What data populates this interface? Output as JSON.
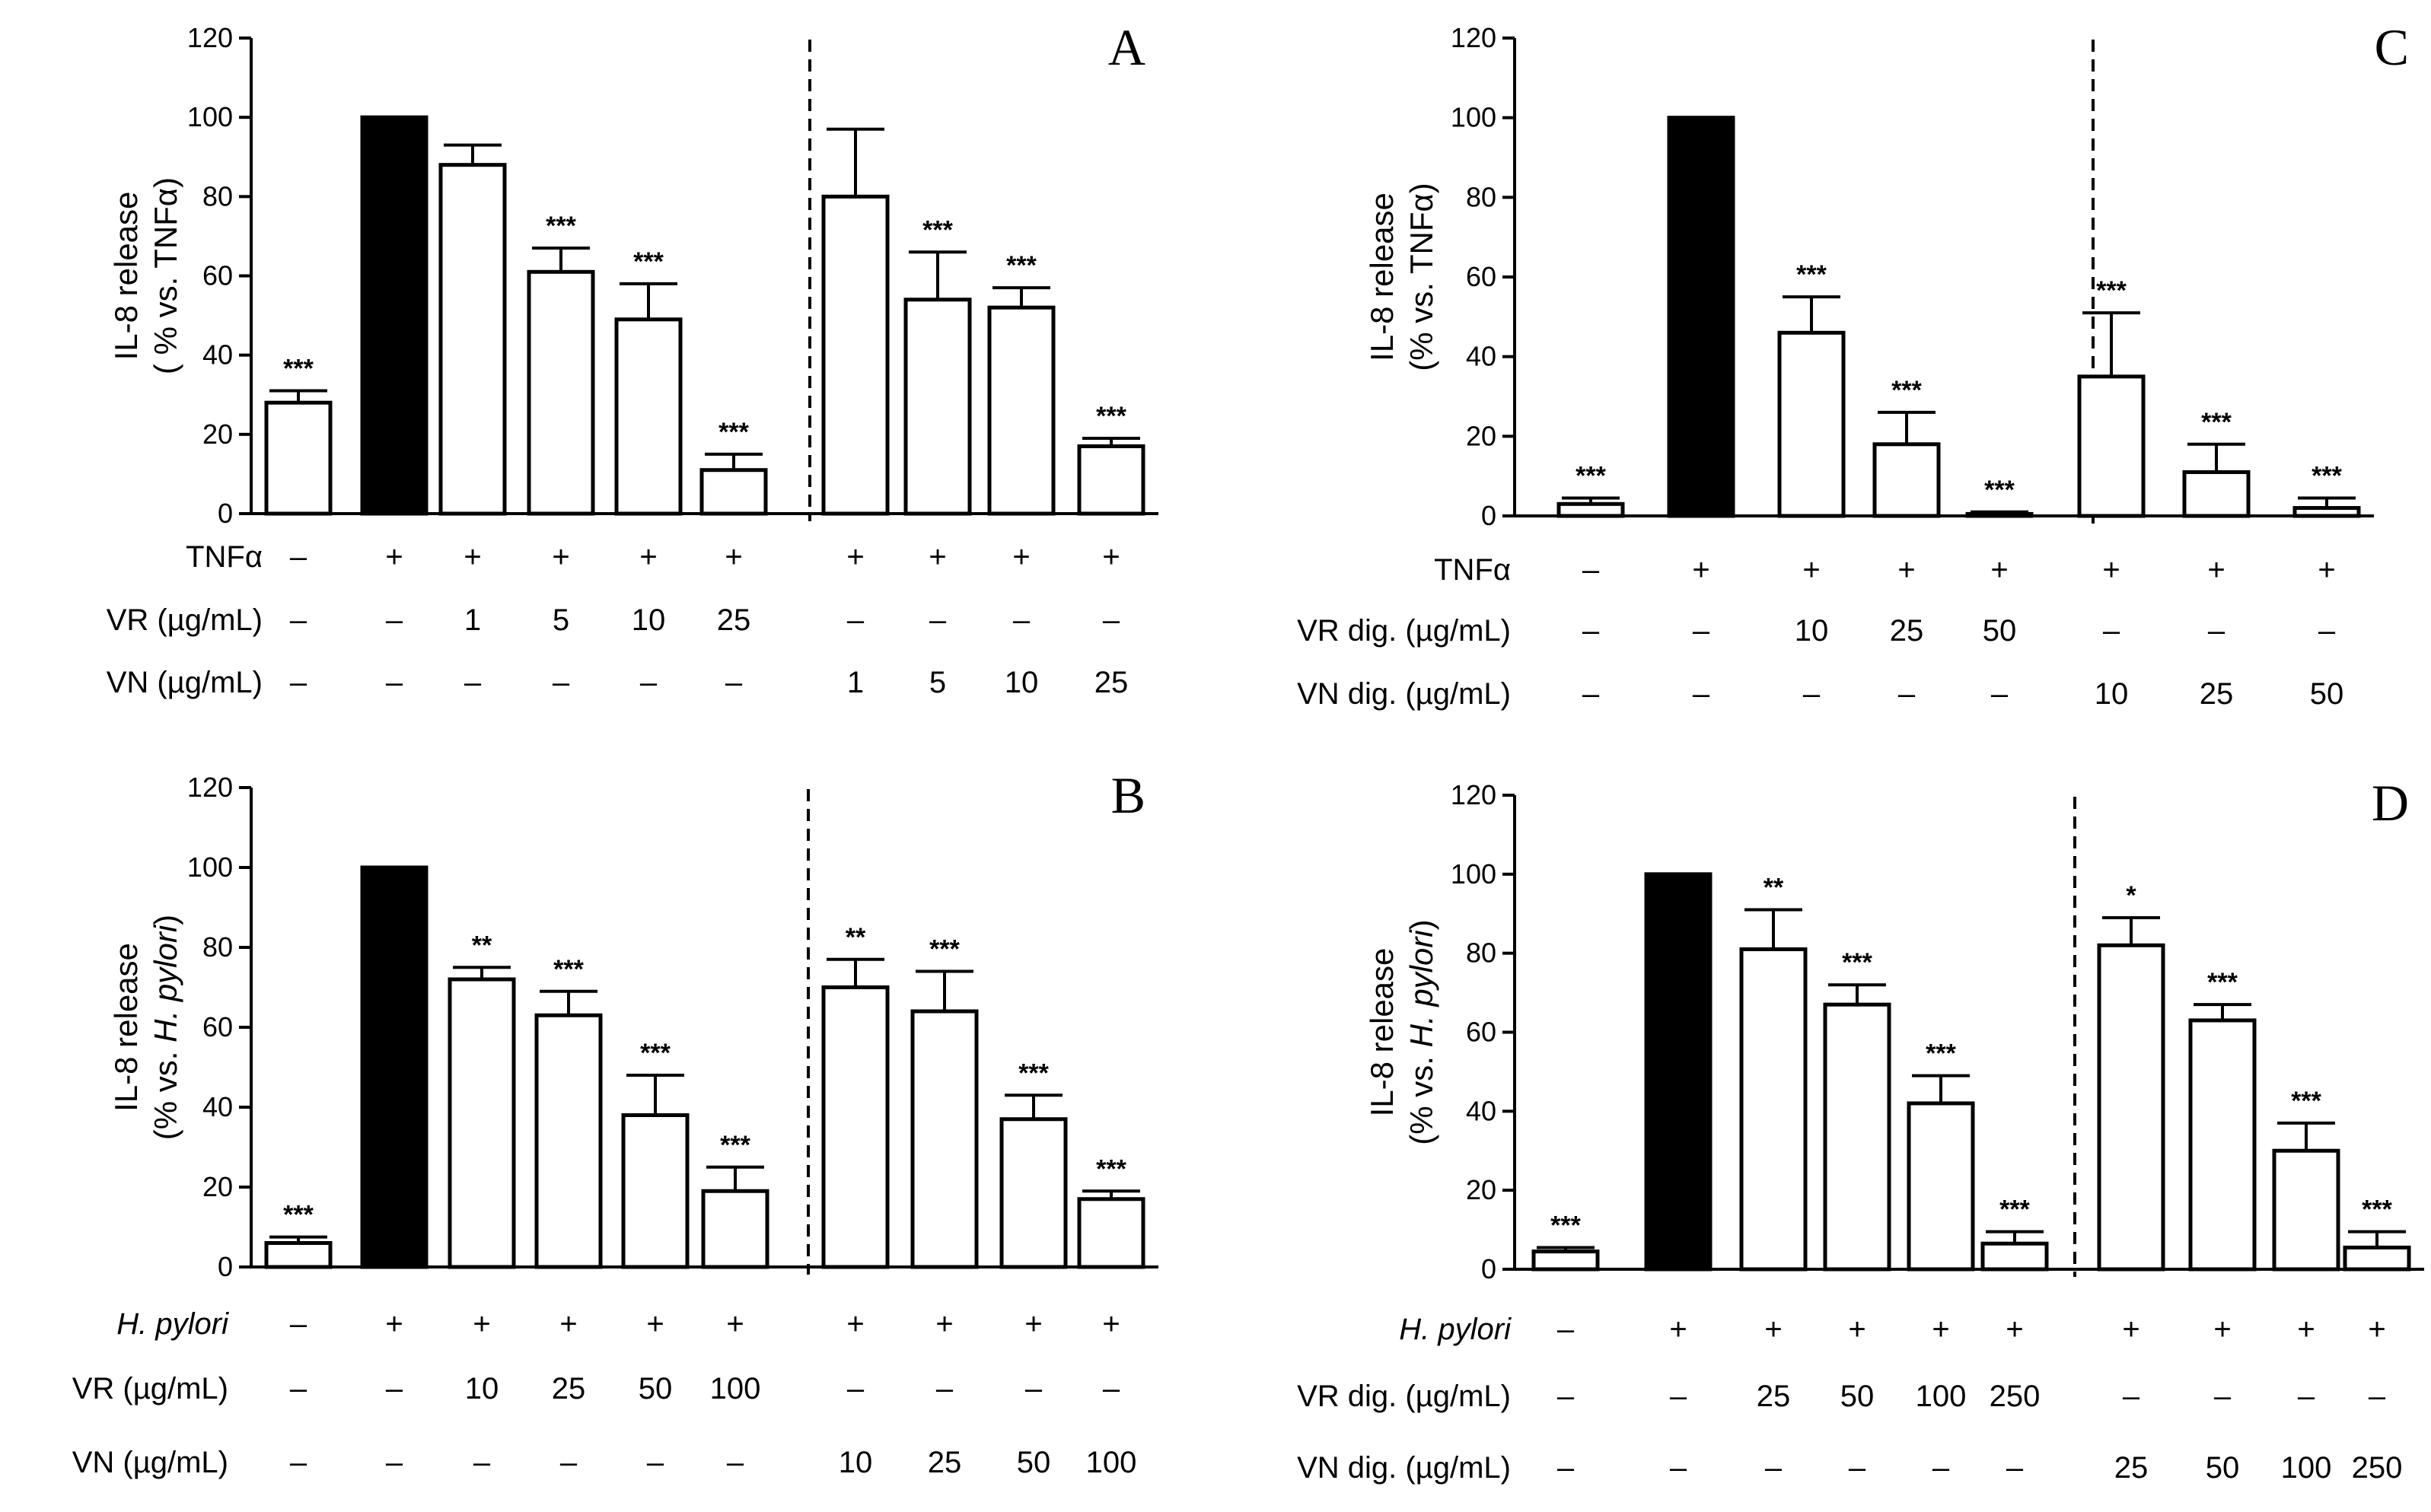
{
  "chart_data": [
    {
      "type": "bar",
      "panel": "A",
      "ylabel": [
        "IL-8 release",
        "( % vs. TNFα)"
      ],
      "ylim": [
        0,
        120
      ],
      "yticks": [
        0,
        20,
        40,
        60,
        80,
        100,
        120
      ],
      "values": [
        28,
        100,
        88,
        61,
        49,
        11,
        80,
        54,
        52,
        17
      ],
      "errors": [
        3,
        0,
        5,
        6,
        9,
        4,
        17,
        12,
        5,
        2
      ],
      "filled": [
        false,
        true,
        false,
        false,
        false,
        false,
        false,
        false,
        false,
        false
      ],
      "significance": [
        "***",
        "",
        "",
        "***",
        "***",
        "***",
        "",
        "***",
        "***",
        "***"
      ],
      "divider_after": 6,
      "conditions": [
        {
          "label": "TNFα",
          "italic": false,
          "values": [
            "–",
            "+",
            "+",
            "+",
            "+",
            "+",
            "+",
            "+",
            "+",
            "+"
          ]
        },
        {
          "label": "VR (µg/mL)",
          "italic": false,
          "values": [
            "–",
            "–",
            "1",
            "5",
            "10",
            "25",
            "–",
            "–",
            "–",
            "–"
          ]
        },
        {
          "label": "VN (µg/mL)",
          "italic": false,
          "values": [
            "–",
            "–",
            "–",
            "–",
            "–",
            "–",
            "1",
            "5",
            "10",
            "25"
          ]
        }
      ]
    },
    {
      "type": "bar",
      "panel": "B",
      "ylabel": [
        "IL-8 release",
        "(% vs. H. pylori)"
      ],
      "ylabel_italic_word": "H. pylori",
      "ylim": [
        0,
        120
      ],
      "yticks": [
        0,
        20,
        40,
        60,
        80,
        100,
        120
      ],
      "values": [
        6,
        100,
        72,
        63,
        38,
        19,
        70,
        64,
        37,
        17
      ],
      "errors": [
        1.5,
        0,
        3,
        6,
        10,
        6,
        7,
        10,
        6,
        2
      ],
      "filled": [
        false,
        true,
        false,
        false,
        false,
        false,
        false,
        false,
        false,
        false
      ],
      "significance": [
        "***",
        "",
        "**",
        "***",
        "***",
        "***",
        "**",
        "***",
        "***",
        "***"
      ],
      "divider_after": 6,
      "conditions": [
        {
          "label": "H. pylori",
          "italic": true,
          "values": [
            "–",
            "+",
            "+",
            "+",
            "+",
            "+",
            "+",
            "+",
            "+",
            "+"
          ]
        },
        {
          "label": "VR (µg/mL)",
          "italic": false,
          "values": [
            "–",
            "–",
            "10",
            "25",
            "50",
            "100",
            "–",
            "–",
            "–",
            "–"
          ]
        },
        {
          "label": "VN (µg/mL)",
          "italic": false,
          "values": [
            "–",
            "–",
            "–",
            "–",
            "–",
            "–",
            "10",
            "25",
            "50",
            "100"
          ]
        }
      ]
    },
    {
      "type": "bar",
      "panel": "C",
      "ylabel": [
        "IL-8 release",
        "(% vs. TNFα)"
      ],
      "ylim": [
        0,
        120
      ],
      "yticks": [
        0,
        20,
        40,
        60,
        80,
        100,
        120
      ],
      "values": [
        3,
        100,
        46,
        18,
        0.5,
        35,
        11,
        2
      ],
      "errors": [
        1.5,
        0,
        9,
        8,
        0.5,
        16,
        7,
        2.5
      ],
      "filled": [
        false,
        true,
        false,
        false,
        false,
        false,
        false,
        false
      ],
      "significance": [
        "***",
        "",
        "***",
        "***",
        "***",
        "***",
        "***",
        "***"
      ],
      "divider_after": 5,
      "conditions": [
        {
          "label": "TNFα",
          "italic": false,
          "values": [
            "–",
            "+",
            "+",
            "+",
            "+",
            "+",
            "+",
            "+"
          ]
        },
        {
          "label": "VR dig. (µg/mL)",
          "italic": false,
          "values": [
            "–",
            "–",
            "10",
            "25",
            "50",
            "–",
            "–",
            "–"
          ]
        },
        {
          "label": "VN dig. (µg/mL)",
          "italic": false,
          "values": [
            "–",
            "–",
            "–",
            "–",
            "–",
            "10",
            "25",
            "50"
          ]
        }
      ]
    },
    {
      "type": "bar",
      "panel": "D",
      "ylabel": [
        "IL-8 release",
        "(% vs. H. pylori)"
      ],
      "ylabel_italic_word": "H. pylori",
      "ylim": [
        0,
        120
      ],
      "yticks": [
        0,
        20,
        40,
        60,
        80,
        100,
        120
      ],
      "values": [
        4.5,
        100,
        81,
        67,
        42,
        6.5,
        82,
        63,
        30,
        5.5
      ],
      "errors": [
        1,
        0,
        10,
        5,
        7,
        3,
        7,
        4,
        7,
        4
      ],
      "filled": [
        false,
        true,
        false,
        false,
        false,
        false,
        false,
        false,
        false,
        false
      ],
      "significance": [
        "***",
        "",
        "**",
        "***",
        "***",
        "***",
        "*",
        "***",
        "***",
        "***"
      ],
      "divider_after": 6,
      "conditions": [
        {
          "label": "H. pylori",
          "italic": true,
          "values": [
            "–",
            "+",
            "+",
            "+",
            "+",
            "+",
            "+",
            "+",
            "+",
            "+"
          ]
        },
        {
          "label": "VR dig. (µg/mL)",
          "italic": false,
          "values": [
            "–",
            "–",
            "25",
            "50",
            "100",
            "250",
            "–",
            "–",
            "–",
            "–"
          ]
        },
        {
          "label": "VN dig. (µg/mL)",
          "italic": false,
          "values": [
            "–",
            "–",
            "–",
            "–",
            "–",
            "–",
            "25",
            "50",
            "100",
            "250"
          ]
        }
      ]
    }
  ]
}
